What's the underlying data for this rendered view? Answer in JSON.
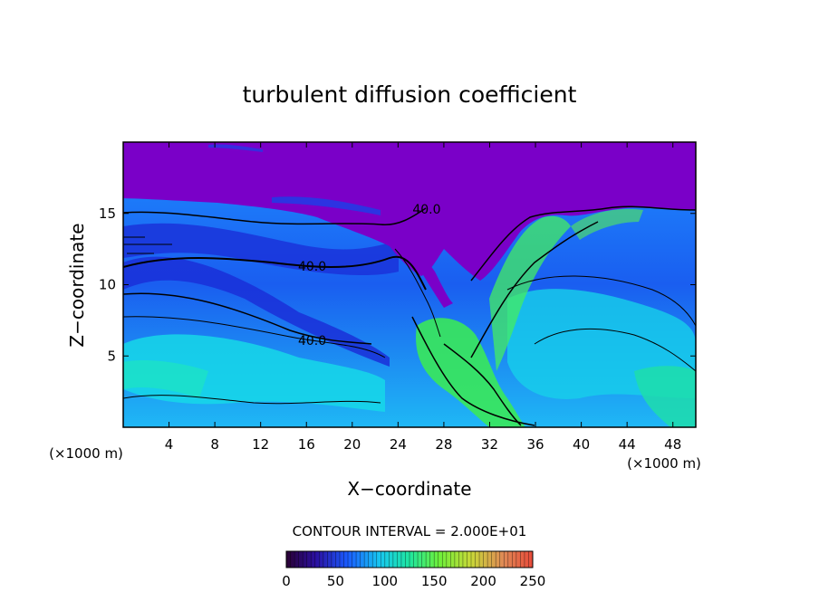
{
  "chart_data": {
    "type": "heatmap",
    "title": "turbulent diffusion coefficient",
    "xlabel": "X−coordinate",
    "ylabel": "Z−coordinate",
    "x_unit_label": "(×1000 m)",
    "x_unit_label_right": "(×1000 m)",
    "xlim": [
      0,
      50
    ],
    "ylim": [
      0,
      20
    ],
    "x_ticks": [
      4,
      8,
      12,
      16,
      20,
      24,
      28,
      32,
      36,
      40,
      44,
      48
    ],
    "y_ticks": [
      5,
      10,
      15
    ],
    "contour_interval_text": "CONTOUR INTERVAL = 2.000E+01",
    "contour_labels": [
      {
        "text": "40.0",
        "x": 26.5,
        "y": 15.3
      },
      {
        "text": "40.0",
        "x": 16.5,
        "y": 11.3
      },
      {
        "text": "40.0",
        "x": 16.5,
        "y": 6.1
      }
    ],
    "colorbar": {
      "min": 0,
      "max": 250,
      "tick_labels": [
        "0",
        "50",
        "100",
        "150",
        "200",
        "250"
      ],
      "tick_values": [
        0,
        50,
        100,
        150,
        200,
        250
      ]
    },
    "field_features": {
      "upper_layer_value": 0,
      "lower_layer_typical_range": [
        40,
        100
      ],
      "max_region_value": 150
    }
  }
}
